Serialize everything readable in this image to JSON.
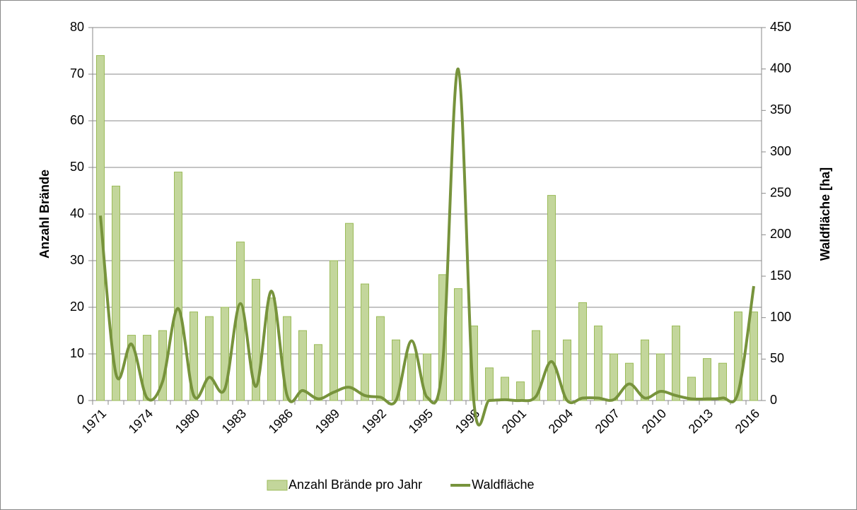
{
  "chart_data": {
    "type": "bar-line",
    "categories": [
      "1971",
      null,
      null,
      "1974",
      null,
      null,
      "1980",
      null,
      null,
      "1983",
      null,
      null,
      "1986",
      null,
      null,
      "1989",
      null,
      null,
      "1992",
      null,
      null,
      "1995",
      null,
      null,
      "1998",
      null,
      null,
      "2001",
      null,
      null,
      "2004",
      null,
      null,
      "2007",
      null,
      null,
      "2010",
      null,
      null,
      "2013",
      null,
      null,
      "2016"
    ],
    "series": [
      {
        "name": "Anzahl Brände pro Jahr",
        "type": "bar",
        "color": "#c3d69b",
        "edge_color": "#9bbb59",
        "values": [
          74,
          46,
          14,
          14,
          15,
          49,
          19,
          18,
          20,
          34,
          26,
          22,
          18,
          15,
          12,
          30,
          38,
          25,
          18,
          13,
          10,
          10,
          27,
          24,
          16,
          7,
          5,
          4,
          15,
          44,
          13,
          21,
          16,
          10,
          8,
          13,
          10,
          16,
          5,
          9,
          8,
          19,
          19
        ]
      },
      {
        "name": "Waldfläche",
        "type": "line",
        "axis": "y2",
        "color": "#77933c",
        "values": [
          223,
          32,
          68,
          3,
          23,
          111,
          6,
          28,
          14,
          117,
          17,
          132,
          6,
          12,
          2,
          10,
          16,
          6,
          4,
          0,
          72,
          4,
          44,
          400,
          0,
          0,
          1,
          0,
          5,
          47,
          0,
          3,
          3,
          1,
          20,
          3,
          11,
          6,
          2,
          2,
          3,
          10,
          138
        ]
      }
    ],
    "y_label": "Anzahl Brände",
    "y2_label": "Waldfläche [ha]",
    "ylim": [
      0,
      80
    ],
    "yticks": [
      0,
      10,
      20,
      30,
      40,
      50,
      60,
      70,
      80
    ],
    "y2lim": [
      0,
      450
    ],
    "y2ticks": [
      0,
      50,
      100,
      150,
      200,
      250,
      300,
      350,
      400,
      450
    ],
    "grid": true,
    "legend": "bottom"
  }
}
